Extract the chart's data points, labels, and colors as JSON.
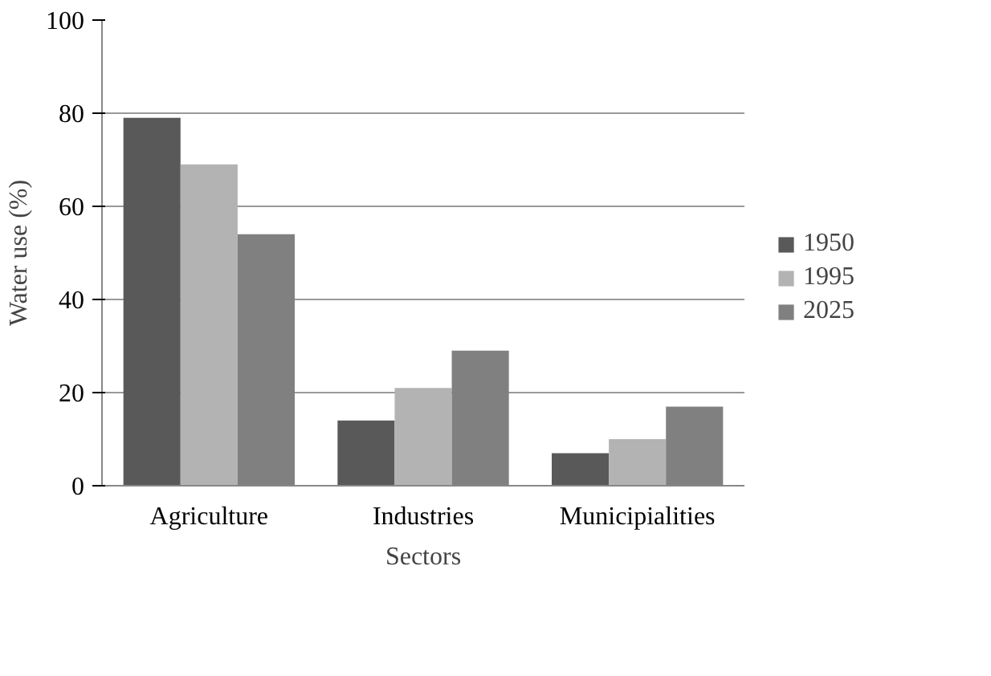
{
  "chart_data": {
    "type": "bar",
    "xlabel": "Sectors",
    "ylabel": "Water use (%)",
    "categories": [
      "Agriculture",
      "Industries",
      "Municipialities"
    ],
    "series": [
      {
        "name": "1950",
        "color": "#595959",
        "values": [
          79,
          14,
          7
        ]
      },
      {
        "name": "1995",
        "color": "#b3b3b3",
        "values": [
          69,
          21,
          10
        ]
      },
      {
        "name": "2025",
        "color": "#808080",
        "values": [
          54,
          29,
          17
        ]
      }
    ],
    "ylim": [
      0,
      100
    ],
    "yticks": [
      0,
      20,
      40,
      60,
      80,
      100
    ],
    "grid": "y",
    "legend": "right"
  }
}
